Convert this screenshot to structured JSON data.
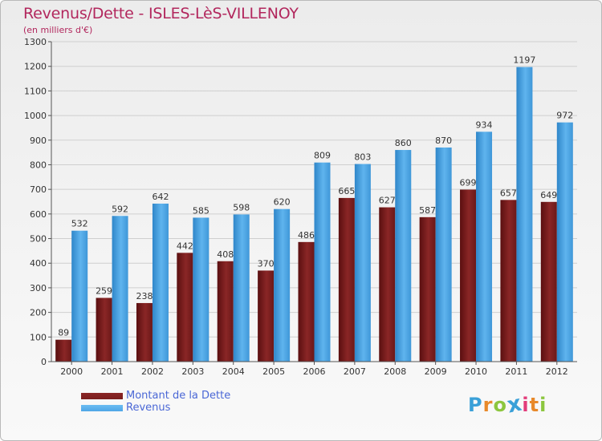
{
  "chart_data": {
    "type": "bar",
    "title": "Revenus/Dette - ISLES-LèS-VILLENOY",
    "subtitle": "(en milliers d'€)",
    "categories": [
      "2000",
      "2001",
      "2002",
      "2003",
      "2004",
      "2005",
      "2006",
      "2007",
      "2008",
      "2009",
      "2010",
      "2011",
      "2012"
    ],
    "series": [
      {
        "name": "Montant de la Dette",
        "color": "#7a1d1d",
        "values": [
          89,
          259,
          238,
          442,
          408,
          370,
          486,
          665,
          627,
          587,
          699,
          657,
          649
        ]
      },
      {
        "name": "Revenus",
        "color": "#4ea6e6",
        "values": [
          532,
          592,
          642,
          585,
          598,
          620,
          809,
          803,
          860,
          870,
          934,
          1197,
          972
        ]
      }
    ],
    "ylim": [
      0,
      1300
    ],
    "yticks": [
      0,
      100,
      200,
      300,
      400,
      500,
      600,
      700,
      800,
      900,
      1000,
      1100,
      1200,
      1300
    ],
    "grid": true,
    "legend_position": "bottom-left"
  },
  "logo": {
    "text": "Proxiti",
    "letters": [
      "P",
      "r",
      "o",
      "x",
      "i",
      "t",
      "i"
    ],
    "colors": [
      "#3aa0d8",
      "#e8892a",
      "#8cc63e",
      "#3aa0d8",
      "#e33c7a",
      "#e8892a",
      "#8cc63e"
    ]
  }
}
